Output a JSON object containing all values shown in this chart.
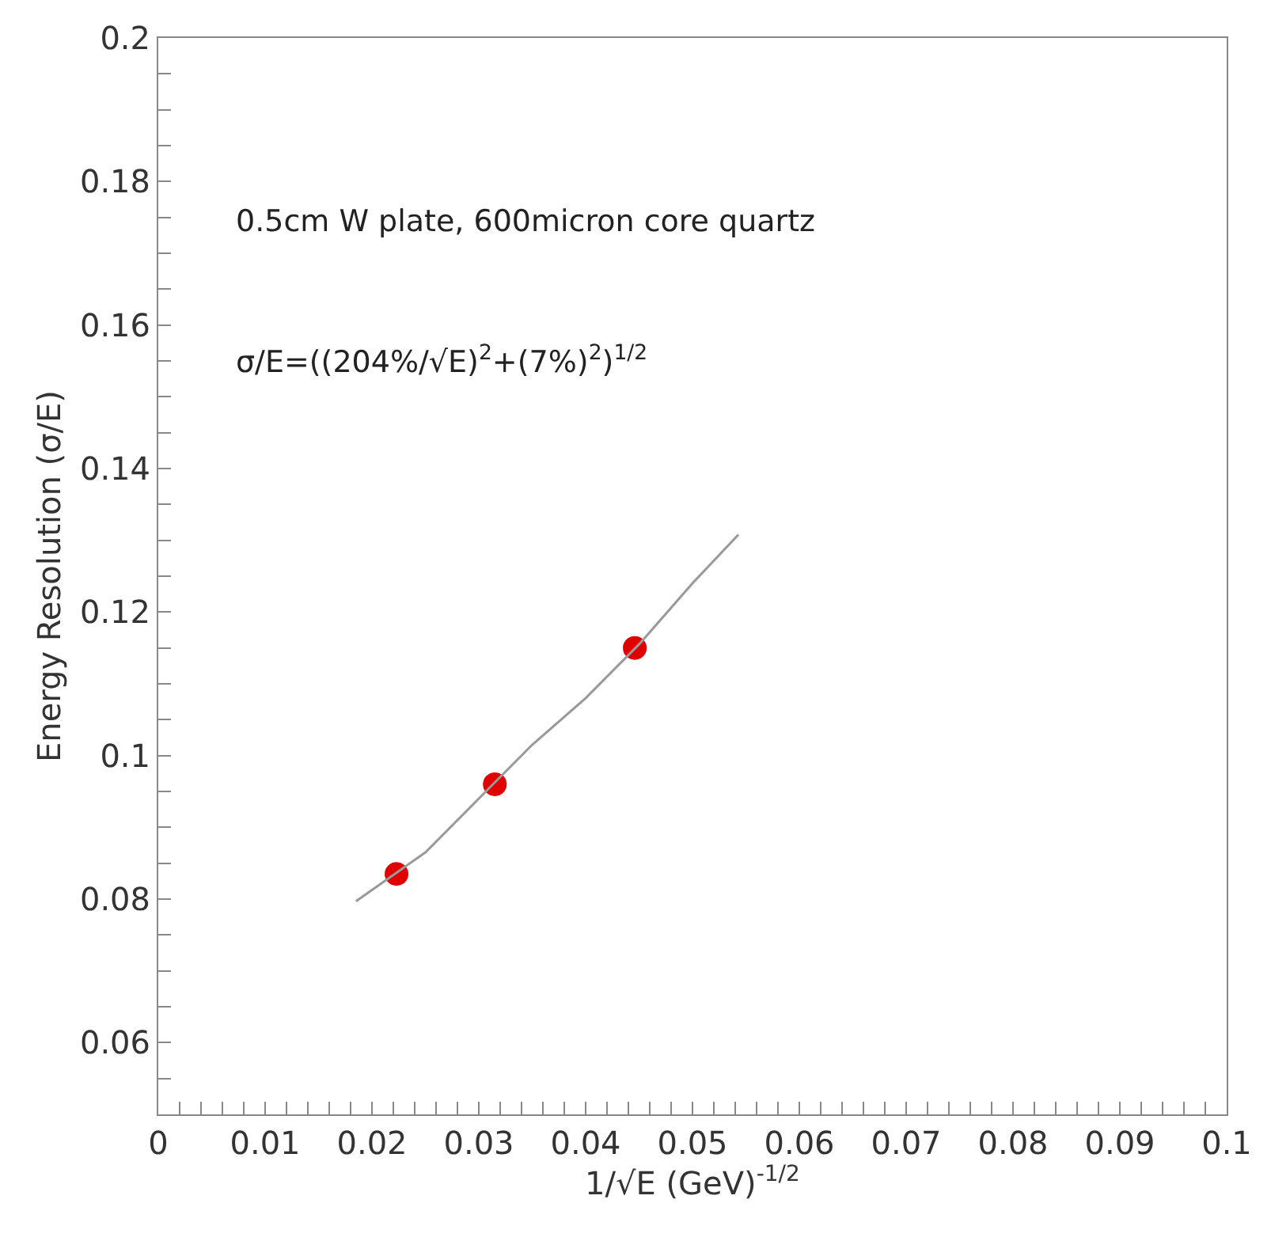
{
  "chart_data": {
    "type": "scatter",
    "xlabel": "1/√E (GeV)$^{-1/2}$",
    "ylabel": "Energy Resolution (σ/E)",
    "annotations": [
      "0.5cm W plate, 600micron core quartz",
      "σ/E=((204%/√E)$^{2}$+(7%)$^{2}$)$^{1/2}$"
    ],
    "series": [
      {
        "color": "#e00000",
        "marker": "circle",
        "x": [
          0.0223,
          0.0315,
          0.0446
        ],
        "values": [
          0.0835,
          0.096,
          0.115
        ]
      },
      {
        "type": "line",
        "color": "#999999",
        "marker": "none",
        "line_style": "solid",
        "x": [
          0.0185,
          0.025,
          0.03,
          0.035,
          0.04,
          0.045,
          0.05,
          0.0543
        ],
        "values": [
          0.0797,
          0.0865,
          0.094,
          0.1015,
          0.108,
          0.1155,
          0.124,
          0.1308
        ]
      }
    ],
    "xlim": [
      0,
      0.1
    ],
    "xticks": [
      0,
      0.01,
      0.02,
      0.03,
      0.04,
      0.05,
      0.06,
      0.07,
      0.08,
      0.09,
      {
        "value": 0.1,
        "label": "0.1"
      },
      {
        "value": 0.002,
        "label": null
      },
      {
        "value": 0.004,
        "label": null
      },
      {
        "value": 0.006,
        "label": null
      },
      {
        "value": 0.008,
        "label": null
      },
      {
        "value": 0.012,
        "label": null
      },
      {
        "value": 0.014,
        "label": null
      },
      {
        "value": 0.016,
        "label": null
      },
      {
        "value": 0.018,
        "label": null
      },
      {
        "value": 0.022,
        "label": null
      },
      {
        "value": 0.024,
        "label": null
      },
      {
        "value": 0.026,
        "label": null
      },
      {
        "value": 0.028,
        "label": null
      },
      {
        "value": 0.032,
        "label": null
      },
      {
        "value": 0.034,
        "label": null
      },
      {
        "value": 0.036,
        "label": null
      },
      {
        "value": 0.038,
        "label": null
      },
      {
        "value": 0.042,
        "label": null
      },
      {
        "value": 0.044,
        "label": null
      },
      {
        "value": 0.046,
        "label": null
      },
      {
        "value": 0.048,
        "label": null
      },
      {
        "value": 0.052,
        "label": null
      },
      {
        "value": 0.054,
        "label": null
      },
      {
        "value": 0.056,
        "label": null
      },
      {
        "value": 0.058,
        "label": null
      },
      {
        "value": 0.062,
        "label": null
      },
      {
        "value": 0.064,
        "label": null
      },
      {
        "value": 0.066,
        "label": null
      },
      {
        "value": 0.068,
        "label": null
      },
      {
        "value": 0.072,
        "label": null
      },
      {
        "value": 0.074,
        "label": null
      },
      {
        "value": 0.076,
        "label": null
      },
      {
        "value": 0.078,
        "label": null
      },
      {
        "value": 0.082,
        "label": null
      },
      {
        "value": 0.084,
        "label": null
      },
      {
        "value": 0.086,
        "label": null
      },
      {
        "value": 0.088,
        "label": null
      },
      {
        "value": 0.092,
        "label": null
      },
      {
        "value": 0.094,
        "label": null
      },
      {
        "value": 0.096,
        "label": null
      },
      {
        "value": 0.098,
        "label": null
      }
    ],
    "ylim": [
      0.05,
      0.2
    ],
    "yticks": [
      0.06,
      0.08,
      {
        "value": 0.1,
        "label": "0.1"
      },
      0.12,
      0.14,
      0.16,
      0.18,
      {
        "value": 0.2,
        "label": "0.2"
      },
      {
        "value": 0.055,
        "label": null
      },
      {
        "value": 0.065,
        "label": null
      },
      {
        "value": 0.07,
        "label": null
      },
      {
        "value": 0.075,
        "label": null
      },
      {
        "value": 0.085,
        "label": null
      },
      {
        "value": 0.09,
        "label": null
      },
      {
        "value": 0.095,
        "label": null
      },
      {
        "value": 0.105,
        "label": null
      },
      {
        "value": 0.11,
        "label": null
      },
      {
        "value": 0.115,
        "label": null
      },
      {
        "value": 0.125,
        "label": null
      },
      {
        "value": 0.13,
        "label": null
      },
      {
        "value": 0.135,
        "label": null
      },
      {
        "value": 0.145,
        "label": null
      },
      {
        "value": 0.15,
        "label": null
      },
      {
        "value": 0.155,
        "label": null
      },
      {
        "value": 0.165,
        "label": null
      },
      {
        "value": 0.17,
        "label": null
      },
      {
        "value": 0.175,
        "label": null
      },
      {
        "value": 0.185,
        "label": null
      },
      {
        "value": 0.19,
        "label": null
      },
      {
        "value": 0.195,
        "label": null
      }
    ]
  }
}
